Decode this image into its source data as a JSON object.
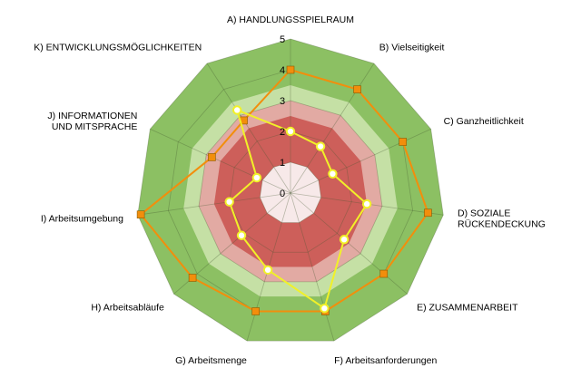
{
  "chart_data": {
    "type": "radar",
    "axes": [
      "A) HANDLUNGSSPIELRAUM",
      "B) Vielseitigkeit",
      "C) Ganzheitlichkeit",
      "D) SOZIALE RÜCKENDECKUNG",
      "E) ZUSAMMENARBEIT",
      "F) Arbeitsanforderungen",
      "G) Arbeitsmenge",
      "H) Arbeitsabläufe",
      "I) Arbeitsumgebung",
      "J) INFORMATIONEN UND MITSPRACHE",
      "K) ENTWICKLUNGSMÖGLICHKEITEN"
    ],
    "axis_label_lines": [
      [
        "A) HANDLUNGSSPIELRAUM"
      ],
      [
        "B) Vielseitigkeit"
      ],
      [
        "C) Ganzheitlichkeit"
      ],
      [
        "D) SOZIALE",
        "RÜCKENDECKUNG"
      ],
      [
        "E) ZUSAMMENARBEIT"
      ],
      [
        "F) Arbeitsanforderungen"
      ],
      [
        "G) Arbeitsmenge"
      ],
      [
        "H) Arbeitsabläufe"
      ],
      [
        "I) Arbeitsumgebung"
      ],
      [
        "J) INFORMATIONEN",
        "UND MITSPRACHE"
      ],
      [
        "K) ENTWICKLUNGSMÖGLICHKEITEN"
      ]
    ],
    "rlim": [
      0,
      5
    ],
    "ticks": [
      0,
      1,
      2,
      3,
      4,
      5
    ],
    "bands": [
      {
        "from": 0,
        "to": 1,
        "color": "#f7e9e9"
      },
      {
        "from": 1,
        "to": 2.5,
        "color": "#cd5f5a"
      },
      {
        "from": 2.5,
        "to": 3,
        "color": "#e2aaa3"
      },
      {
        "from": 3,
        "to": 3.5,
        "color": "#c5e0a5"
      },
      {
        "from": 3.5,
        "to": 5,
        "color": "#8cc063"
      }
    ],
    "series": [
      {
        "color": "#f28e0c",
        "marker": "square",
        "values": [
          4,
          4,
          4,
          4.5,
          4,
          4,
          4,
          4.2,
          4.9,
          2.8,
          2.8
        ]
      },
      {
        "color": "#f1f128",
        "marker": "circle",
        "values": [
          2,
          1.8,
          1.5,
          2.5,
          2.3,
          3.9,
          2.6,
          2.1,
          2,
          1.2,
          3.2
        ]
      }
    ]
  }
}
